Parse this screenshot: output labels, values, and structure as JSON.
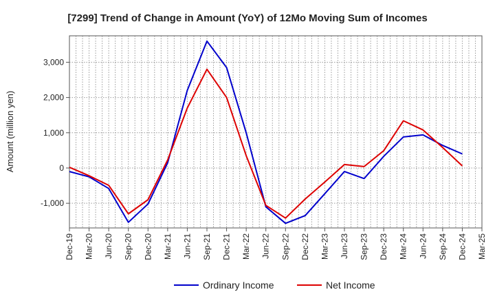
{
  "chart_data": {
    "type": "line",
    "title": "[7299]  Trend of Change in Amount (YoY) of 12Mo Moving Sum of Incomes",
    "xlabel": "",
    "ylabel": "Amount (million yen)",
    "ylim": [
      -1700,
      3750
    ],
    "yticks": [
      -1000,
      0,
      1000,
      2000,
      3000
    ],
    "ytick_labels": [
      "-1,000",
      "0",
      "1,000",
      "2,000",
      "3,000"
    ],
    "categories": [
      "Dec-19",
      "Mar-20",
      "Jun-20",
      "Sep-20",
      "Dec-20",
      "Mar-21",
      "Jun-21",
      "Sep-21",
      "Dec-21",
      "Mar-22",
      "Jun-22",
      "Sep-22",
      "Dec-22",
      "Mar-23",
      "Jun-23",
      "Sep-23",
      "Dec-23",
      "Mar-24",
      "Jun-24",
      "Sep-24",
      "Dec-24",
      "Mar-25"
    ],
    "grid": true,
    "legend_position": "bottom-center",
    "series": [
      {
        "name": "Ordinary Income",
        "color": "#0000cc",
        "values": [
          -100,
          -250,
          -580,
          -1540,
          -1020,
          150,
          2200,
          3600,
          2850,
          1000,
          -1100,
          -1570,
          -1350,
          -730,
          -100,
          -300,
          330,
          880,
          940,
          640,
          400,
          null
        ]
      },
      {
        "name": "Net Income",
        "color": "#dd0000",
        "values": [
          20,
          -220,
          -490,
          -1300,
          -900,
          230,
          1700,
          2800,
          2000,
          350,
          -1060,
          -1420,
          -880,
          -400,
          100,
          40,
          490,
          1340,
          1080,
          580,
          60,
          null
        ]
      }
    ]
  }
}
